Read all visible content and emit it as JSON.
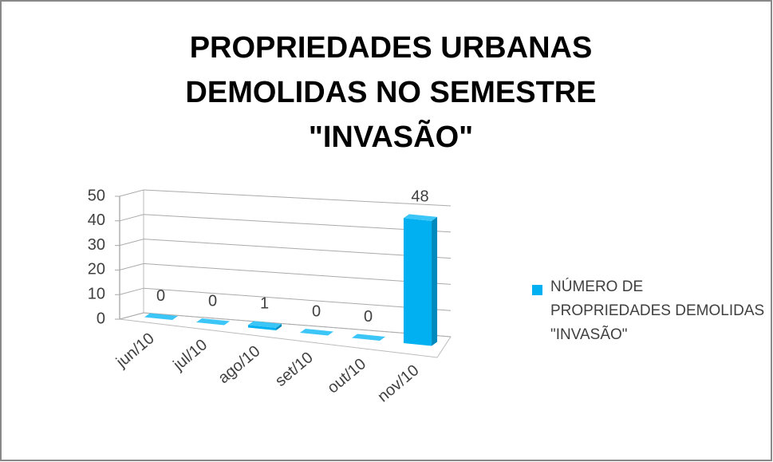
{
  "chart_data": {
    "type": "bar3d",
    "title": [
      "PROPRIEDADES URBANAS",
      "DEMOLIDAS NO SEMESTRE",
      "\"INVASÃO\""
    ],
    "categories": [
      "jun/10",
      "jul/10",
      "ago/10",
      "set/10",
      "out/10",
      "nov/10"
    ],
    "series": [
      {
        "name": "NÚMERO DE PROPRIEDADES DEMOLIDAS \"INVASÃO\"",
        "color": "#00b0f0",
        "values": [
          0,
          0,
          1,
          0,
          0,
          48
        ]
      }
    ],
    "ylim": [
      0,
      50
    ],
    "yticks": [
      0,
      10,
      20,
      30,
      40,
      50
    ],
    "grid": true,
    "legend": "right"
  }
}
